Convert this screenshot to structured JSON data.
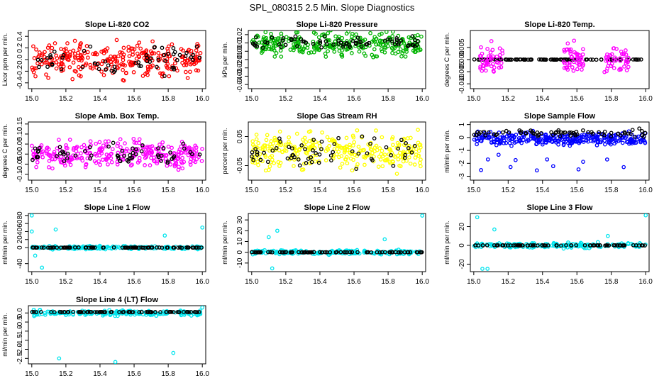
{
  "page": {
    "title": "SPL_080315  2.5 Min. Slope Diagnostics"
  },
  "chart_data": [
    {
      "type": "scatter",
      "title": "Slope Li-820 CO2",
      "ylabel": "Licor ppm per min.",
      "xlim": [
        15.0,
        16.0
      ],
      "ylim": [
        -0.5,
        0.5
      ],
      "xticks": [
        "15.0",
        "15.2",
        "15.4",
        "15.6",
        "15.8",
        "16.0"
      ],
      "yticks": [
        "-0.4",
        "-0.2",
        "0.0",
        "0.2",
        "0.4"
      ],
      "series": [
        {
          "color": "#ff0000",
          "pattern": {
            "spread": 0.42,
            "n": 300
          }
        },
        {
          "color": "#000000",
          "pattern": {
            "spread": 0.35,
            "n": 60
          }
        }
      ]
    },
    {
      "type": "scatter",
      "title": "Slope Li-820 Pressure",
      "ylabel": "kPa per min.",
      "xlim": [
        15.0,
        16.0
      ],
      "ylim": [
        -0.045,
        0.025
      ],
      "xticks": [
        "15.0",
        "15.2",
        "15.4",
        "15.6",
        "15.8",
        "16.0"
      ],
      "yticks": [
        "-0.04",
        "-0.03",
        "-0.02",
        "-0.01",
        "0.00",
        "0.01",
        "0.02"
      ],
      "series": [
        {
          "color": "#00b400",
          "pattern": {
            "center": 0.008,
            "spread": 0.02,
            "n": 300
          }
        },
        {
          "color": "#000000",
          "pattern": {
            "center": 0.01,
            "spread": 0.012,
            "n": 70
          }
        }
      ]
    },
    {
      "type": "scatter",
      "title": "Slope Li-820 Temp.",
      "ylabel": "degrees C per min.",
      "xlim": [
        15.0,
        16.0
      ],
      "ylim": [
        -0.012,
        0.012
      ],
      "xticks": [
        "15.0",
        "15.2",
        "15.4",
        "15.6",
        "15.8",
        "16.0"
      ],
      "yticks": [
        "-0.010",
        "-0.005",
        "0.000",
        "0.005"
      ],
      "series": [
        {
          "color": "#000000",
          "pattern": {
            "line": 0.0,
            "n": 100
          }
        },
        {
          "color": "#ff00ff",
          "pattern": {
            "clusters": [
              [
                15.03,
                15.17
              ],
              [
                15.52,
                15.64
              ],
              [
                15.76,
                15.9
              ]
            ],
            "spread": 0.009,
            "n": 140
          }
        }
      ]
    },
    {
      "type": "scatter",
      "title": "Slope Amb. Box Temp.",
      "ylabel": "degrees C per min.",
      "xlim": [
        15.0,
        16.0
      ],
      "ylim": [
        -0.13,
        0.16
      ],
      "xticks": [
        "15.0",
        "15.2",
        "15.4",
        "15.6",
        "15.8",
        "16.0"
      ],
      "yticks": [
        "-0.10",
        "-0.05",
        "0.00",
        "0.05",
        "0.10",
        "0.15"
      ],
      "series": [
        {
          "color": "#ff00ff",
          "pattern": {
            "spread": 0.1,
            "n": 300
          }
        },
        {
          "color": "#000000",
          "pattern": {
            "spread": 0.07,
            "n": 60
          }
        }
      ]
    },
    {
      "type": "scatter",
      "title": "Slope Gas Stream RH",
      "ylabel": "percent per min.",
      "xlim": [
        15.0,
        16.0
      ],
      "ylim": [
        -0.1,
        0.1
      ],
      "xticks": [
        "15.0",
        "15.2",
        "15.4",
        "15.6",
        "15.8",
        "16.0"
      ],
      "yticks": [
        "-0.05",
        "0.05"
      ],
      "series": [
        {
          "color": "#ffff00",
          "pattern": {
            "spread": 0.09,
            "n": 300
          }
        },
        {
          "color": "#000000",
          "pattern": {
            "spread": 0.07,
            "n": 60
          }
        }
      ]
    },
    {
      "type": "scatter",
      "title": "Slope Sample Flow",
      "ylabel": "ml/min per min.",
      "xlim": [
        15.0,
        16.0
      ],
      "ylim": [
        -3.3,
        1.2
      ],
      "xticks": [
        "15.0",
        "15.2",
        "15.4",
        "15.6",
        "15.8",
        "16.0"
      ],
      "yticks": [
        "-3",
        "-2",
        "-1",
        "0",
        "1"
      ],
      "series": [
        {
          "color": "#0000ff",
          "pattern": {
            "center": -0.1,
            "spread": 0.7,
            "n": 300,
            "tail": -2.8
          }
        },
        {
          "color": "#000000",
          "pattern": {
            "center": 0.3,
            "spread": 0.5,
            "n": 70
          }
        }
      ]
    },
    {
      "type": "scatter",
      "title": "Slope Line 1 Flow",
      "ylabel": "ml/min per min.",
      "xlim": [
        15.0,
        16.0
      ],
      "ylim": [
        -60,
        85
      ],
      "xticks": [
        "15.0",
        "15.2",
        "15.4",
        "15.6",
        "15.8",
        "16.0"
      ],
      "yticks": [
        "-40",
        "0",
        "20",
        "40",
        "60",
        "80"
      ],
      "series": [
        {
          "color": "#00e5ee",
          "pattern": {
            "spread": 6,
            "n": 200,
            "outliers": [
              [
                15.0,
                80
              ],
              [
                15.0,
                40
              ],
              [
                15.02,
                -20
              ],
              [
                15.06,
                -50
              ],
              [
                15.14,
                45
              ],
              [
                15.78,
                30
              ],
              [
                16.0,
                50
              ]
            ]
          }
        },
        {
          "color": "#000000",
          "pattern": {
            "line": 0,
            "n": 80
          }
        }
      ]
    },
    {
      "type": "scatter",
      "title": "Slope Line 2 Flow",
      "ylabel": "ml/min per min.",
      "xlim": [
        15.0,
        16.0
      ],
      "ylim": [
        -18,
        36
      ],
      "xticks": [
        "15.0",
        "15.2",
        "15.4",
        "15.6",
        "15.8",
        "16.0"
      ],
      "yticks": [
        "-10",
        "0",
        "10",
        "20",
        "30"
      ],
      "series": [
        {
          "color": "#00e5ee",
          "pattern": {
            "spread": 3,
            "n": 200,
            "outliers": [
              [
                15.12,
                -15
              ],
              [
                15.15,
                20
              ],
              [
                15.1,
                14
              ],
              [
                15.78,
                12
              ],
              [
                16.0,
                34
              ]
            ]
          }
        },
        {
          "color": "#000000",
          "pattern": {
            "line": 0,
            "n": 80
          }
        }
      ]
    },
    {
      "type": "scatter",
      "title": "Slope Line 3 Flow",
      "ylabel": "ml/min per min.",
      "xlim": [
        15.0,
        16.0
      ],
      "ylim": [
        -28,
        34
      ],
      "xticks": [
        "15.0",
        "15.2",
        "15.4",
        "15.6",
        "15.8",
        "16.0"
      ],
      "yticks": [
        "-20",
        "0",
        "20"
      ],
      "series": [
        {
          "color": "#00e5ee",
          "pattern": {
            "spread": 4,
            "n": 200,
            "outliers": [
              [
                15.02,
                30
              ],
              [
                15.05,
                -25
              ],
              [
                15.08,
                -25
              ],
              [
                15.12,
                17
              ],
              [
                15.78,
                10
              ],
              [
                16.0,
                32
              ]
            ]
          }
        },
        {
          "color": "#000000",
          "pattern": {
            "line": 0,
            "n": 80
          }
        }
      ]
    },
    {
      "type": "scatter",
      "title": "Slope Line 4 (LT) Flow",
      "ylabel": "ml/min per min.",
      "xlim": [
        15.0,
        16.0
      ],
      "ylim": [
        -2.8,
        0.4
      ],
      "xticks": [
        "15.0",
        "15.2",
        "15.4",
        "15.6",
        "15.8",
        "16.0"
      ],
      "yticks": [
        "-2.5",
        "-2.0",
        "-1.5",
        "-1.0",
        "-0.5",
        "0.0"
      ],
      "series": [
        {
          "color": "#00e5ee",
          "pattern": {
            "spread": 0.2,
            "n": 200,
            "outliers": [
              [
                15.16,
                -2.5
              ],
              [
                15.49,
                -2.7
              ],
              [
                15.83,
                -2.2
              ],
              [
                16.0,
                0.3
              ]
            ]
          }
        },
        {
          "color": "#000000",
          "pattern": {
            "line": 0.05,
            "n": 80
          }
        }
      ]
    }
  ]
}
